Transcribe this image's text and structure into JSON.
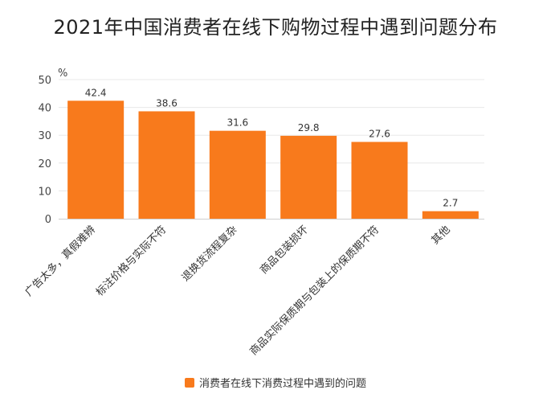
{
  "chart_data": {
    "type": "bar",
    "title": "2021年中国消费者在线下购物过程中遇到问题分布",
    "ylabel": "%",
    "xlabel": "",
    "ylim": [
      0,
      50
    ],
    "yticks": [
      0,
      10,
      20,
      30,
      40,
      50
    ],
    "categories": [
      "广告太多，真假难辨",
      "标注价格与实际不符",
      "退换货流程复杂",
      "商品包装损坏",
      "商品实际保质期与包装上的保质期不符",
      "其他"
    ],
    "series": [
      {
        "name": "消费者在线下消费过程中遇到的问题",
        "values": [
          42.4,
          38.6,
          31.6,
          29.8,
          27.6,
          2.7
        ],
        "color": "#f87a1c"
      }
    ],
    "grid": true,
    "legend_position": "bottom"
  }
}
